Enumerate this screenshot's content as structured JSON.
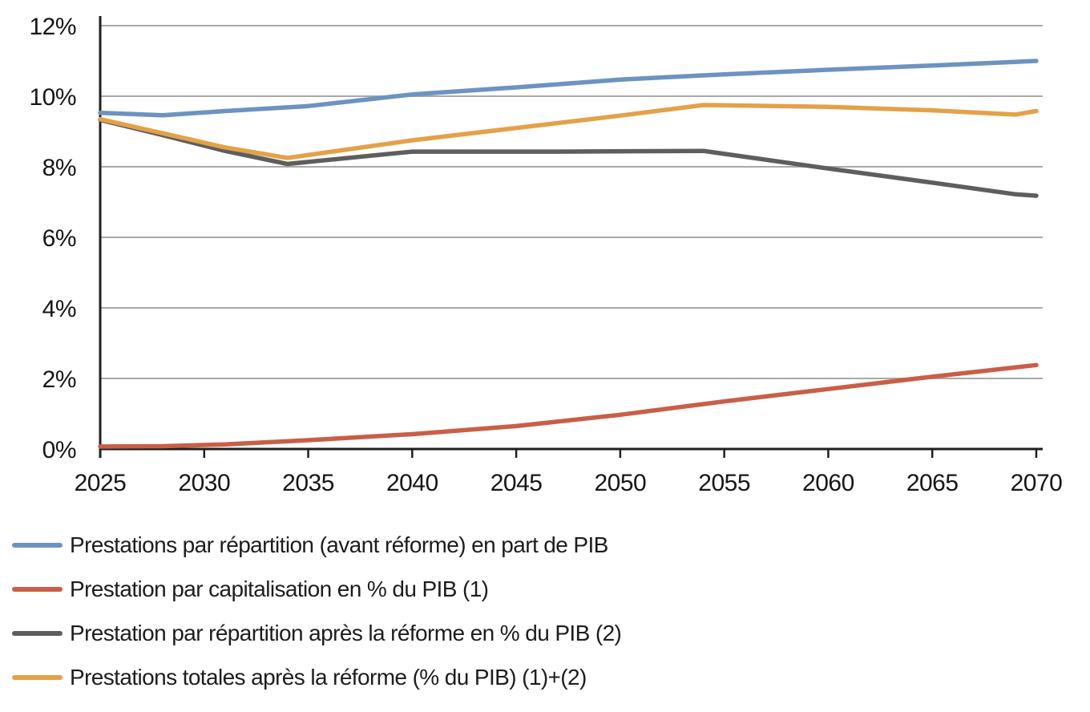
{
  "chart_data": {
    "type": "line",
    "title": "",
    "xlabel": "",
    "ylabel": "",
    "grid": true,
    "legend_position": "bottom-left",
    "xlim": [
      2025,
      2070
    ],
    "ylim": [
      0,
      12
    ],
    "x_tick_values": [
      2025,
      2030,
      2035,
      2040,
      2045,
      2050,
      2055,
      2060,
      2065,
      2070
    ],
    "x_tick_labels": [
      "2025",
      "2030",
      "2035",
      "2040",
      "2045",
      "2050",
      "2055",
      "2060",
      "2065",
      "2070"
    ],
    "y_tick_values": [
      0,
      2,
      4,
      6,
      8,
      10,
      12
    ],
    "y_tick_labels": [
      "0%",
      "2%",
      "4%",
      "6%",
      "8%",
      "10%",
      "12%"
    ],
    "colors": {
      "grid": "#a9a9a9",
      "axis": "#1f1f1f",
      "tick_text": "#161616",
      "background": "#ffffff"
    },
    "series": [
      {
        "name": "Prestations par répartition (avant réforme) en part de PIB",
        "color": "#6c93c1",
        "points": [
          [
            2025,
            9.53
          ],
          [
            2028,
            9.46
          ],
          [
            2031,
            9.58
          ],
          [
            2035,
            9.72
          ],
          [
            2040,
            10.05
          ],
          [
            2045,
            10.25
          ],
          [
            2050,
            10.47
          ],
          [
            2055,
            10.62
          ],
          [
            2060,
            10.75
          ],
          [
            2065,
            10.87
          ],
          [
            2070,
            11.0
          ]
        ]
      },
      {
        "name": "Prestation par capitalisation en % du PIB (1)",
        "color": "#c85f46",
        "points": [
          [
            2025,
            0.07
          ],
          [
            2028,
            0.08
          ],
          [
            2031,
            0.13
          ],
          [
            2035,
            0.25
          ],
          [
            2040,
            0.42
          ],
          [
            2045,
            0.65
          ],
          [
            2050,
            0.97
          ],
          [
            2055,
            1.35
          ],
          [
            2060,
            1.7
          ],
          [
            2065,
            2.05
          ],
          [
            2070,
            2.38
          ]
        ]
      },
      {
        "name": "Prestation par répartition après la réforme en % du PIB (2)",
        "color": "#5e5e5e",
        "points": [
          [
            2025,
            9.33
          ],
          [
            2028,
            8.9
          ],
          [
            2031,
            8.45
          ],
          [
            2034,
            8.08
          ],
          [
            2040,
            8.43
          ],
          [
            2047,
            8.43
          ],
          [
            2054,
            8.45
          ],
          [
            2060,
            7.95
          ],
          [
            2065,
            7.55
          ],
          [
            2069,
            7.22
          ],
          [
            2070,
            7.18
          ]
        ]
      },
      {
        "name": "Prestations totales après la réforme (% du PIB) (1)+(2)",
        "color": "#e4a149",
        "points": [
          [
            2025,
            9.35
          ],
          [
            2028,
            8.95
          ],
          [
            2031,
            8.55
          ],
          [
            2034,
            8.25
          ],
          [
            2040,
            8.75
          ],
          [
            2045,
            9.1
          ],
          [
            2050,
            9.45
          ],
          [
            2054,
            9.75
          ],
          [
            2060,
            9.7
          ],
          [
            2065,
            9.6
          ],
          [
            2069,
            9.48
          ],
          [
            2070,
            9.58
          ]
        ]
      }
    ]
  }
}
